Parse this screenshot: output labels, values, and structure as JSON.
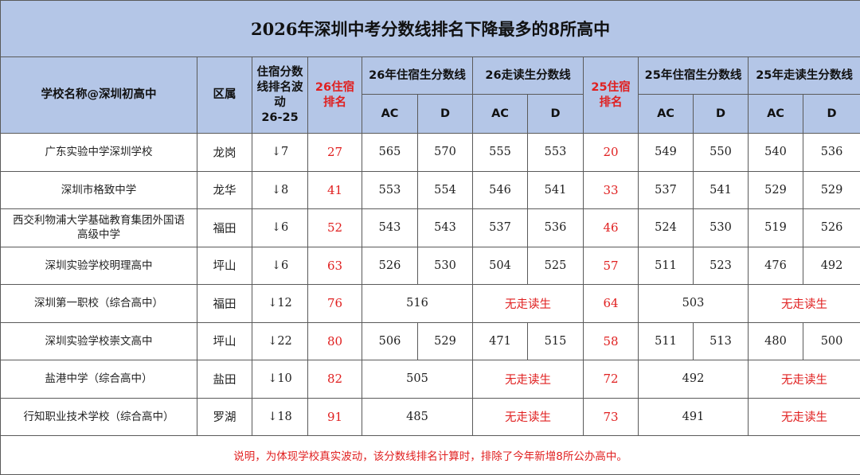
{
  "title": "2026年深圳中考分数线排名下降最多的8所高中",
  "headers": {
    "school": "学校名称@深圳初高中",
    "district": "区属",
    "wave_line1": "住宿分数",
    "wave_line2": "线排名波",
    "wave_line3": "动",
    "wave_line4": "26-25",
    "rank26_line1": "26住宿",
    "rank26_line2": "排名",
    "res26": "26年住宿生分数线",
    "day26": "26走读生分数线",
    "rank25_line1": "25住宿",
    "rank25_line2": "排名",
    "res25": "25年住宿生分数线",
    "day25": "25年走读生分数线",
    "ac": "AC",
    "d": "D"
  },
  "rows": [
    {
      "name": "广东实验中学深圳学校",
      "district": "龙岗",
      "change": "↓7",
      "rank26": "27",
      "res26_ac": "565",
      "res26_d": "570",
      "day26_ac": "555",
      "day26_d": "553",
      "rank25": "20",
      "res25_ac": "549",
      "res25_d": "550",
      "day25_ac": "540",
      "day25_d": "536"
    },
    {
      "name": "深圳市格致中学",
      "district": "龙华",
      "change": "↓8",
      "rank26": "41",
      "res26_ac": "553",
      "res26_d": "554",
      "day26_ac": "546",
      "day26_d": "541",
      "rank25": "33",
      "res25_ac": "537",
      "res25_d": "541",
      "day25_ac": "529",
      "day25_d": "529"
    },
    {
      "name_line1": "西交利物浦大学基础教育集团外国语",
      "name_line2": "高级中学",
      "district": "福田",
      "change": "↓6",
      "rank26": "52",
      "res26_ac": "543",
      "res26_d": "543",
      "day26_ac": "537",
      "day26_d": "536",
      "rank25": "46",
      "res25_ac": "524",
      "res25_d": "530",
      "day25_ac": "519",
      "day25_d": "526"
    },
    {
      "name": "深圳实验学校明理高中",
      "district": "坪山",
      "change": "↓6",
      "rank26": "63",
      "res26_ac": "526",
      "res26_d": "530",
      "day26_ac": "504",
      "day26_d": "525",
      "rank25": "57",
      "res25_ac": "511",
      "res25_d": "523",
      "day25_ac": "476",
      "day25_d": "492"
    },
    {
      "name": "深圳第一职校（综合高中）",
      "district": "福田",
      "change": "↓12",
      "rank26": "76",
      "res26": "516",
      "day26": "无走读生",
      "rank25": "64",
      "res25": "503",
      "day25": "无走读生"
    },
    {
      "name": "深圳实验学校崇文高中",
      "district": "坪山",
      "change": "↓22",
      "rank26": "80",
      "res26_ac": "506",
      "res26_d": "529",
      "day26_ac": "471",
      "day26_d": "515",
      "rank25": "58",
      "res25_ac": "511",
      "res25_d": "513",
      "day25_ac": "480",
      "day25_d": "500"
    },
    {
      "name": "盐港中学（综合高中）",
      "district": "盐田",
      "change": "↓10",
      "rank26": "82",
      "res26": "505",
      "day26": "无走读生",
      "rank25": "72",
      "res25": "492",
      "day25": "无走读生"
    },
    {
      "name": "行知职业技术学校（综合高中）",
      "district": "罗湖",
      "change": "↓18",
      "rank26": "91",
      "res26": "485",
      "day26": "无走读生",
      "rank25": "73",
      "res25": "491",
      "day25": "无走读生"
    }
  ],
  "note": "说明，为体现学校真实波动，该分数线排名计算时，排除了今年新增8所公办高中。",
  "colors": {
    "header_bg": "#b4c6e7",
    "accent_red": "#e02020",
    "border": "#5a5a5a"
  }
}
